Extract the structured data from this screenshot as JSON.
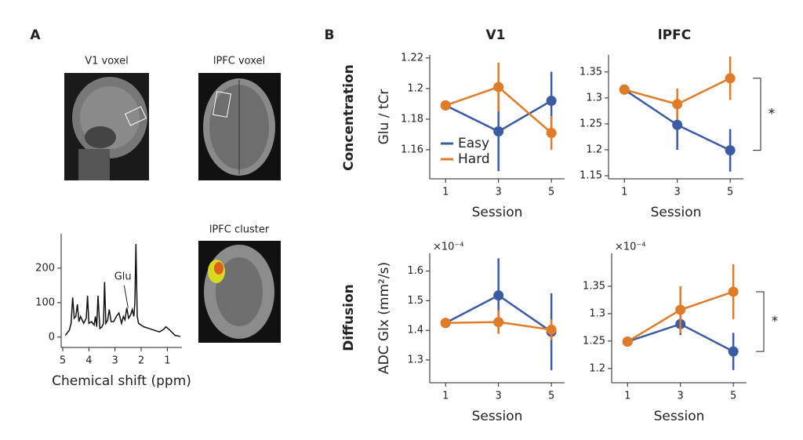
{
  "panel_labels": [
    "A",
    "B"
  ],
  "image_captions": [
    "V1 voxel",
    "lPFC voxel",
    "lPFC cluster"
  ],
  "column_titles": [
    "V1",
    "lPFC"
  ],
  "row_labels": [
    "Concentration",
    "Diffusion"
  ],
  "chart_data": [
    {
      "type": "line",
      "xlabel": "Chemical shift (ppm)",
      "annotation": "Glu",
      "color": "#111111",
      "xlim": [
        5.06,
        0.44
      ],
      "xticks": [
        5,
        4,
        3,
        2,
        1
      ],
      "ylim": [
        -30,
        300
      ],
      "yticks": [
        0,
        100,
        200
      ],
      "x": [
        4.9,
        4.75,
        4.68,
        4.62,
        4.56,
        4.5,
        4.44,
        4.38,
        4.32,
        4.2,
        4.1,
        4.05,
        4.0,
        3.9,
        3.8,
        3.75,
        3.7,
        3.65,
        3.58,
        3.5,
        3.44,
        3.4,
        3.35,
        3.28,
        3.22,
        3.15,
        3.05,
        2.95,
        2.85,
        2.75,
        2.68,
        2.62,
        2.55,
        2.48,
        2.4,
        2.34,
        2.28,
        2.24,
        2.2,
        2.15,
        2.1,
        2.0,
        1.9,
        1.7,
        1.5,
        1.3,
        1.15,
        1.05,
        0.9,
        0.7,
        0.5
      ],
      "values": [
        5,
        20,
        40,
        115,
        55,
        60,
        95,
        45,
        60,
        40,
        55,
        120,
        40,
        45,
        35,
        60,
        30,
        120,
        25,
        30,
        40,
        160,
        40,
        50,
        80,
        45,
        45,
        60,
        70,
        40,
        60,
        50,
        85,
        55,
        65,
        80,
        60,
        100,
        270,
        60,
        40,
        35,
        30,
        25,
        20,
        15,
        22,
        30,
        20,
        5,
        2
      ]
    },
    {
      "type": "pointplot",
      "ylabel": "Glu / tCr",
      "xlabel": "Session",
      "legend": "lower left",
      "x": [
        1,
        3,
        5
      ],
      "xlim": [
        0.4,
        5.5
      ],
      "xticks": [
        1,
        3,
        5
      ],
      "ylim": [
        1.141,
        1.222
      ],
      "yticks": [
        1.16,
        1.18,
        1.2,
        1.22
      ],
      "series": [
        {
          "name": "Easy",
          "color": "#3b5ba5",
          "values": [
            1.189,
            1.172,
            1.192
          ],
          "errors": [
            0,
            0.026,
            0.019
          ]
        },
        {
          "name": "Hard",
          "color": "#e07b28",
          "values": [
            1.189,
            1.201,
            1.171
          ],
          "errors": [
            0,
            0.016,
            0.011
          ]
        }
      ]
    },
    {
      "type": "pointplot",
      "xlabel": "Session",
      "significance": "*",
      "x": [
        1,
        3,
        5
      ],
      "xlim": [
        0.4,
        5.5
      ],
      "xticks": [
        1,
        3,
        5
      ],
      "ylim": [
        1.144,
        1.383
      ],
      "yticks": [
        1.15,
        1.2,
        1.25,
        1.3,
        1.35
      ],
      "series": [
        {
          "name": "Easy",
          "color": "#3b5ba5",
          "values": [
            1.316,
            1.248,
            1.199
          ],
          "errors": [
            0,
            0.048,
            0.041
          ]
        },
        {
          "name": "Hard",
          "color": "#e07b28",
          "values": [
            1.316,
            1.288,
            1.338
          ],
          "errors": [
            0,
            0.03,
            0.042
          ]
        }
      ]
    },
    {
      "type": "pointplot",
      "ylabel": "ADC Glx (mm²/s)",
      "xlabel": "Session",
      "offset_text": "×10⁻⁴",
      "x": [
        1,
        3,
        5
      ],
      "xlim": [
        0.4,
        5.5
      ],
      "xticks": [
        1,
        3,
        5
      ],
      "ylim": [
        1.223,
        1.66
      ],
      "yticks": [
        1.3,
        1.4,
        1.5,
        1.6
      ],
      "series": [
        {
          "name": "Easy",
          "color": "#3b5ba5",
          "values": [
            1.425,
            1.518,
            1.395
          ],
          "errors": [
            0,
            0.125,
            0.13
          ]
        },
        {
          "name": "Hard",
          "color": "#e07b28",
          "values": [
            1.425,
            1.428,
            1.402
          ],
          "errors": [
            0,
            0.04,
            0.035
          ]
        }
      ]
    },
    {
      "type": "pointplot",
      "xlabel": "Session",
      "offset_text": "×10⁻⁴",
      "significance": "*",
      "x": [
        1,
        3,
        5
      ],
      "xlim": [
        0.4,
        5.5
      ],
      "xticks": [
        1,
        3,
        5
      ],
      "ylim": [
        1.174,
        1.41
      ],
      "yticks": [
        1.2,
        1.25,
        1.3,
        1.35
      ],
      "series": [
        {
          "name": "Easy",
          "color": "#3b5ba5",
          "values": [
            1.249,
            1.281,
            1.231
          ],
          "errors": [
            0,
            0.02,
            0.034
          ]
        },
        {
          "name": "Hard",
          "color": "#e07b28",
          "values": [
            1.249,
            1.307,
            1.34
          ],
          "errors": [
            0,
            0.043,
            0.05
          ]
        }
      ]
    }
  ]
}
